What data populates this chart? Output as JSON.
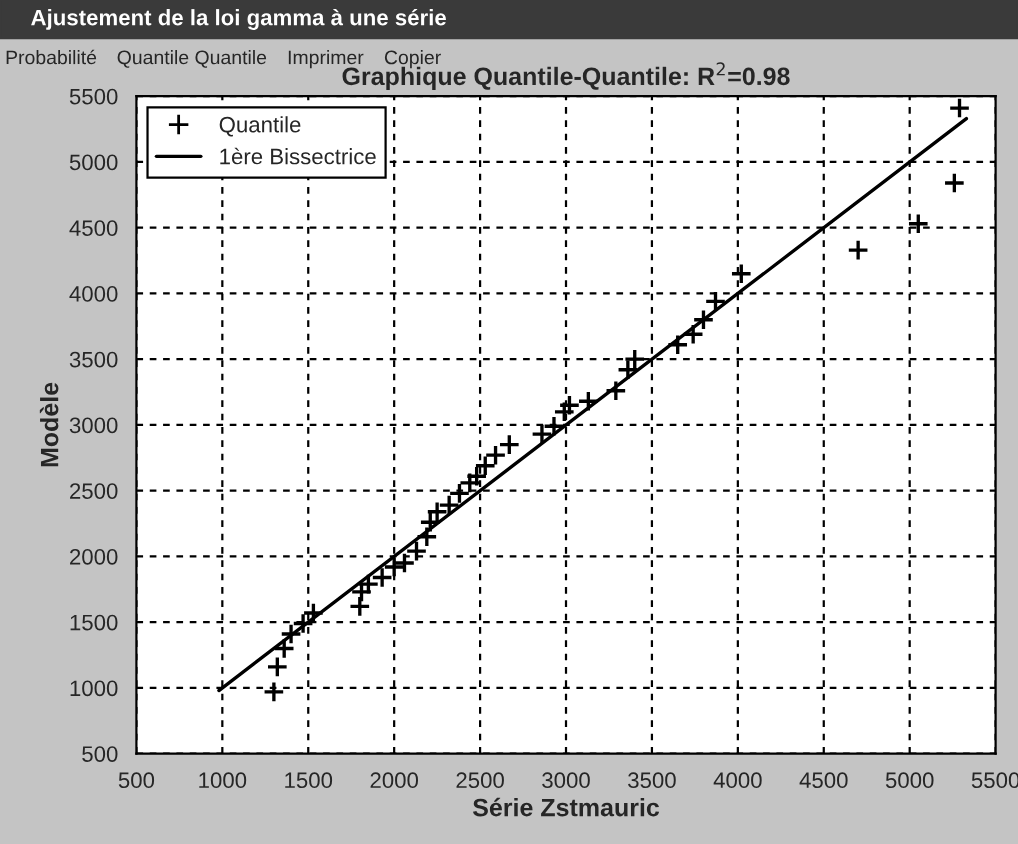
{
  "chart_data": {
    "type": "scatter",
    "title": "Graphique Quantile-Quantile: R$^{2}$=0.98",
    "xlabel": "Série Zstmauric",
    "ylabel": "Modèle",
    "annotations": [
      "Ajustement de la loi gamma à une série",
      "Probabilité",
      "Quantile Quantile",
      "Imprimer",
      "Copier"
    ],
    "series": [
      {
        "name": "Quantile",
        "color": "#000000",
        "marker": "cross",
        "x": [
          1300,
          1320,
          1360,
          1400,
          1470,
          1530,
          1800,
          1810,
          1850,
          1930,
          2000,
          2060,
          2130,
          2190,
          2210,
          2250,
          2320,
          2380,
          2440,
          2480,
          2530,
          2590,
          2670,
          2860,
          2930,
          2990,
          3020,
          3130,
          3290,
          3360,
          3400,
          3650,
          3740,
          3800,
          3870,
          4020,
          4700,
          5050,
          5260,
          5290
        ],
        "values": [
          970,
          1160,
          1300,
          1410,
          1490,
          1570,
          1620,
          1730,
          1790,
          1840,
          1920,
          1950,
          2040,
          2150,
          2260,
          2340,
          2390,
          2480,
          2560,
          2610,
          2690,
          2770,
          2850,
          2930,
          2990,
          3100,
          3150,
          3180,
          3260,
          3420,
          3500,
          3610,
          3690,
          3800,
          3940,
          4150,
          4330,
          4530,
          4840,
          5410
        ]
      },
      {
        "name": "1ère Bissectrice",
        "type": "line",
        "color": "#000000",
        "marker": "none",
        "x": [
          980,
          5330
        ],
        "values": [
          980,
          5330
        ]
      }
    ],
    "line_style": "solid",
    "xlim": [
      500,
      5500
    ],
    "ylim": [
      500,
      5500
    ],
    "xticks": [
      500,
      1000,
      1500,
      2000,
      2500,
      3000,
      3500,
      4000,
      4500,
      5000,
      5500
    ],
    "yticks": [
      500,
      1000,
      1500,
      2000,
      2500,
      3000,
      3500,
      4000,
      4500,
      5000,
      5500
    ],
    "grid": true,
    "legend": "top left"
  }
}
